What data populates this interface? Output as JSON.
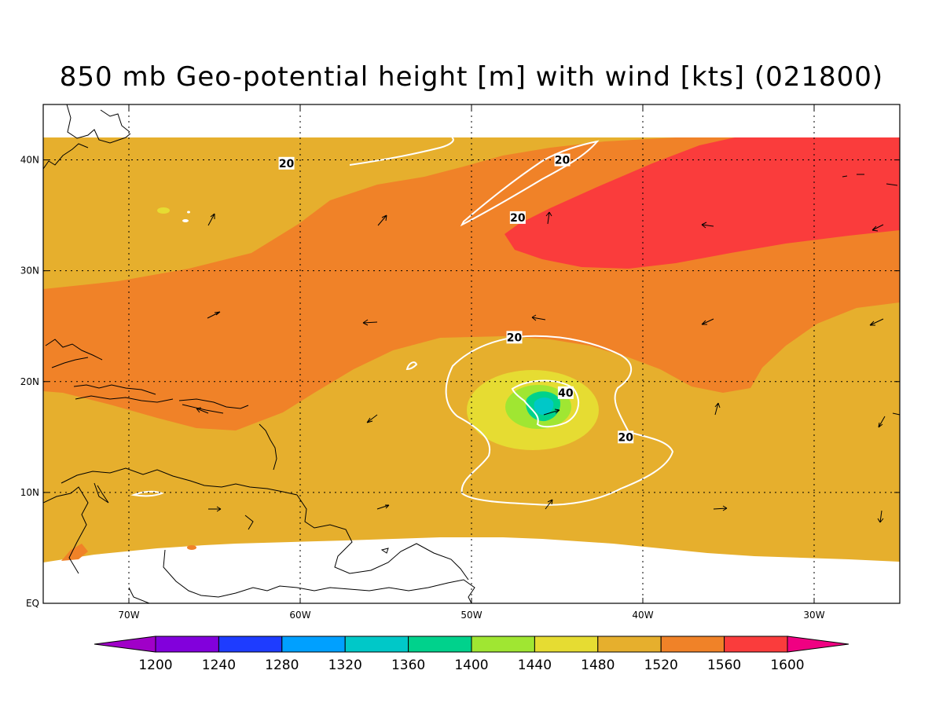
{
  "title": "850 mb Geo-potential height [m] with wind [kts] (021800)",
  "map": {
    "lon_range": [
      -75,
      -25
    ],
    "lat_range": [
      0,
      45
    ],
    "x_ticks": [
      {
        "value": -70,
        "label": "70W"
      },
      {
        "value": -60,
        "label": "60W"
      },
      {
        "value": -50,
        "label": "50W"
      },
      {
        "value": -40,
        "label": "40W"
      },
      {
        "value": -30,
        "label": "30W"
      }
    ],
    "y_ticks": [
      {
        "value": 0,
        "label": "EQ"
      },
      {
        "value": 10,
        "label": "10N"
      },
      {
        "value": 20,
        "label": "20N"
      },
      {
        "value": 30,
        "label": "30N"
      },
      {
        "value": 40,
        "label": "40N"
      }
    ],
    "grid": true
  },
  "colorbar": {
    "levels": [
      "1200",
      "1240",
      "1280",
      "1320",
      "1360",
      "1400",
      "1440",
      "1480",
      "1520",
      "1560",
      "1600"
    ],
    "colors": [
      "#a000c8",
      "#8200dc",
      "#1e3cff",
      "#00a0ff",
      "#00c8c8",
      "#00d28c",
      "#a0e632",
      "#e6dc32",
      "#e6af2d",
      "#f08228",
      "#fa3c3c",
      "#f00082"
    ]
  },
  "contour_labels": [
    {
      "text": "20",
      "lon": -60.8,
      "lat": 39.7
    },
    {
      "text": "20",
      "lon": -44.7,
      "lat": 40.0
    },
    {
      "text": "20",
      "lon": -47.3,
      "lat": 34.8
    },
    {
      "text": "20",
      "lon": -47.5,
      "lat": 24.0
    },
    {
      "text": "40",
      "lon": -44.5,
      "lat": 19.0
    },
    {
      "text": "20",
      "lon": -41.0,
      "lat": 15.0
    }
  ]
}
